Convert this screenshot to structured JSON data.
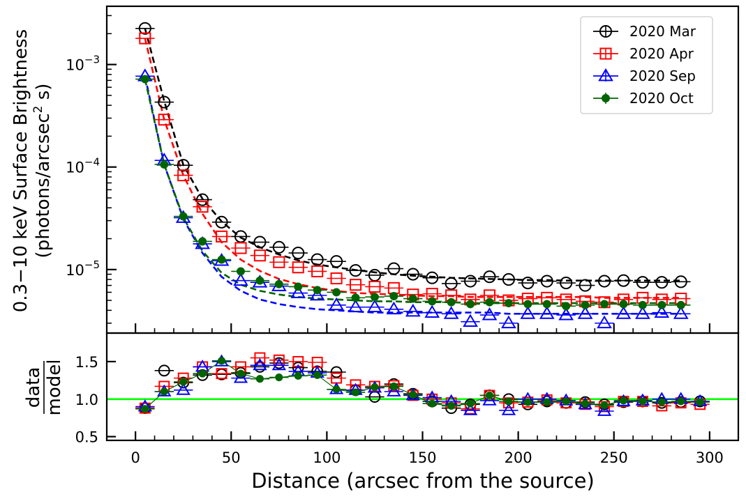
{
  "chart_data": [
    {
      "type": "scatter",
      "panel": "top",
      "y_scale": "log",
      "xlim": [
        -15,
        315
      ],
      "ylim": [
        2.4e-06,
        0.0037
      ],
      "ylabel_line1": "0.3−10 keV Surface Brightness",
      "ylabel_line2": "(photons/arcsec",
      "ylabel_sup": "2",
      "ylabel_end": " s)",
      "y_ticks": [
        {
          "value": 1e-05,
          "base": "10",
          "exp": "−5"
        },
        {
          "value": 0.0001,
          "base": "10",
          "exp": "−4"
        },
        {
          "value": 0.001,
          "base": "10",
          "exp": "−3"
        }
      ],
      "grid": false,
      "legend_position": "top-right",
      "series": [
        {
          "name": "2020 Mar",
          "color": "#000000",
          "marker": "circle-open",
          "x": [
            5,
            15,
            25,
            35,
            45,
            55,
            65,
            75,
            85,
            95,
            105,
            115,
            125,
            135,
            145,
            155,
            165,
            175,
            185,
            195,
            205,
            215,
            225,
            235,
            245,
            255,
            265,
            275,
            285
          ],
          "y": [
            0.00225,
            0.00043,
            0.000104,
            4.8e-05,
            2.9e-05,
            2.1e-05,
            1.85e-05,
            1.65e-05,
            1.45e-05,
            1.25e-05,
            1.2e-05,
            9.8e-06,
            8.8e-06,
            1.02e-05,
            9e-06,
            8.3e-06,
            7.3e-06,
            7.7e-06,
            8.5e-06,
            8e-06,
            7.4e-06,
            7.7e-06,
            7.4e-06,
            7e-06,
            7.7e-06,
            7.8e-06,
            7.5e-06,
            7.5e-06,
            7.6e-06
          ],
          "model": [
            0.00225,
            0.00044,
            0.000105,
            4.9e-05,
            2.95e-05,
            2.05e-05,
            1.65e-05,
            1.4e-05,
            1.23e-05,
            1.12e-05,
            1.05e-05,
            9.9e-06,
            9.4e-06,
            9e-06,
            8.7e-06,
            8.5e-06,
            8.3e-06,
            8.2e-06,
            8.1e-06,
            8e-06,
            7.9e-06,
            7.9e-06,
            7.8e-06,
            7.8e-06,
            7.8e-06,
            7.8e-06,
            7.8e-06,
            7.8e-06,
            7.8e-06
          ]
        },
        {
          "name": "2020 Apr",
          "color": "#ff0000",
          "marker": "square-open",
          "x": [
            5,
            15,
            25,
            35,
            45,
            55,
            65,
            75,
            85,
            95,
            105,
            115,
            125,
            135,
            145,
            155,
            165,
            175,
            185,
            195,
            205,
            215,
            225,
            235,
            245,
            255,
            265,
            275,
            285
          ],
          "y": [
            0.0018,
            0.00029,
            8.3e-05,
            4.1e-05,
            2.1e-05,
            1.62e-05,
            1.37e-05,
            1.18e-05,
            1.05e-05,
            9.6e-06,
            8.2e-06,
            7.1e-06,
            6.8e-06,
            6.6e-06,
            5.7e-06,
            5.8e-06,
            5.6e-06,
            5.1e-06,
            5.6e-06,
            5e-06,
            5.2e-06,
            5.3e-06,
            5.1e-06,
            4.9e-06,
            4.8e-06,
            5.1e-06,
            5.3e-06,
            5.1e-06,
            5.2e-06
          ],
          "model": [
            0.0018,
            0.00029,
            8.3e-05,
            3.5e-05,
            1.85e-05,
            1.25e-05,
            9.7e-06,
            8.1e-06,
            7.2e-06,
            6.6e-06,
            6.2e-06,
            5.9e-06,
            5.8e-06,
            5.7e-06,
            5.6e-06,
            5.5e-06,
            5.5e-06,
            5.4e-06,
            5.4e-06,
            5.4e-06,
            5.4e-06,
            5.4e-06,
            5.4e-06,
            5.4e-06,
            5.3e-06,
            5.3e-06,
            5.3e-06,
            5.3e-06,
            5.3e-06
          ]
        },
        {
          "name": "2020 Sep",
          "color": "#0000ff",
          "marker": "triangle-open",
          "x": [
            5,
            15,
            25,
            35,
            45,
            55,
            65,
            75,
            85,
            95,
            105,
            115,
            125,
            135,
            145,
            155,
            165,
            175,
            185,
            195,
            205,
            215,
            225,
            235,
            245,
            255,
            265,
            275,
            285
          ],
          "y": [
            0.00077,
            0.000116,
            3.2e-05,
            1.78e-05,
            1.22e-05,
            7.8e-06,
            7.5e-06,
            6.9e-06,
            5.9e-06,
            5.6e-06,
            4.5e-06,
            4.3e-06,
            4.3e-06,
            4.1e-06,
            3.9e-06,
            3.8e-06,
            3.7e-06,
            3.1e-06,
            3.6e-06,
            3e-06,
            3.7e-06,
            3.7e-06,
            3.6e-06,
            3.7e-06,
            3e-06,
            3.7e-06,
            3.7e-06,
            3.8e-06,
            3.7e-06
          ],
          "model": [
            0.00077,
            0.000106,
            3.1e-05,
            1.45e-05,
            8.5e-06,
            6.2e-06,
            5.1e-06,
            4.6e-06,
            4.3e-06,
            4.1e-06,
            4e-06,
            3.9e-06,
            3.8e-06,
            3.8e-06,
            3.8e-06,
            3.8e-06,
            3.8e-06,
            3.8e-06,
            3.8e-06,
            3.7e-06,
            3.7e-06,
            3.7e-06,
            3.7e-06,
            3.7e-06,
            3.7e-06,
            3.7e-06,
            3.7e-06,
            3.7e-06,
            3.7e-06
          ]
        },
        {
          "name": "2020 Oct",
          "color": "#006400",
          "marker": "circle-filled",
          "x": [
            5,
            15,
            25,
            35,
            45,
            55,
            65,
            75,
            85,
            95,
            105,
            115,
            125,
            135,
            145,
            155,
            165,
            175,
            185,
            195,
            205,
            215,
            225,
            235,
            245,
            255,
            265,
            275,
            285
          ],
          "y": [
            0.00072,
            0.000106,
            3.3e-05,
            1.88e-05,
            1.25e-05,
            9.6e-06,
            7.8e-06,
            7.2e-06,
            6.8e-06,
            6.3e-06,
            6e-06,
            5.3e-06,
            5.4e-06,
            5.5e-06,
            5.2e-06,
            4.9e-06,
            4.8e-06,
            4.6e-06,
            4.8e-06,
            4.7e-06,
            4.6e-06,
            4.6e-06,
            4.4e-06,
            4.5e-06,
            4.6e-06,
            4.6e-06,
            4.5e-06,
            4.5e-06,
            4.5e-06
          ],
          "model": [
            0.00072,
            0.000106,
            3.2e-05,
            1.52e-05,
            9.3e-06,
            7.1e-06,
            6.2e-06,
            5.7e-06,
            5.4e-06,
            5.2e-06,
            5.1e-06,
            5e-06,
            4.9e-06,
            4.9e-06,
            4.8e-06,
            4.8e-06,
            4.8e-06,
            4.7e-06,
            4.7e-06,
            4.7e-06,
            4.7e-06,
            4.7e-06,
            4.7e-06,
            4.7e-06,
            4.7e-06,
            4.7e-06,
            4.7e-06,
            4.7e-06,
            4.7e-06
          ]
        }
      ]
    },
    {
      "type": "scatter",
      "panel": "bottom",
      "xlabel": "Distance (arcsec from the source)",
      "ylabel_num": "data",
      "ylabel_den": "model",
      "xlim": [
        -15,
        315
      ],
      "ylim": [
        0.45,
        1.88
      ],
      "x_ticks": [
        0,
        50,
        100,
        150,
        200,
        250,
        300
      ],
      "y_ticks": [
        0.5,
        1.0,
        1.5
      ],
      "x_tick_labels": [
        "0",
        "50",
        "100",
        "150",
        "200",
        "250",
        "300"
      ],
      "y_tick_labels": [
        "0.5",
        "1.0",
        "1.5"
      ],
      "reference_line": {
        "y": 1.0,
        "color": "#00ff00"
      },
      "series": [
        {
          "name": "2020 Mar",
          "color": "#000000",
          "marker": "circle-open",
          "x": [
            5,
            15,
            25,
            35,
            45,
            55,
            65,
            75,
            85,
            95,
            105,
            115,
            125,
            135,
            145,
            155,
            165,
            175,
            185,
            195,
            205,
            215,
            225,
            235,
            245,
            255,
            265,
            275,
            285,
            295
          ],
          "y": [
            0.88,
            1.38,
            1.22,
            1.32,
            1.33,
            1.35,
            1.43,
            1.48,
            1.42,
            1.37,
            1.36,
            1.12,
            1.03,
            1.2,
            1.07,
            0.97,
            0.88,
            0.93,
            1.05,
            1.0,
            0.93,
            0.97,
            0.95,
            0.96,
            0.93,
            0.96,
            0.97,
            0.95,
            0.96,
            0.97
          ]
        },
        {
          "name": "2020 Apr",
          "color": "#ff0000",
          "marker": "square-open",
          "x": [
            5,
            15,
            25,
            35,
            45,
            55,
            65,
            75,
            85,
            95,
            105,
            115,
            125,
            135,
            145,
            155,
            165,
            175,
            185,
            195,
            205,
            215,
            225,
            235,
            245,
            255,
            265,
            275,
            285,
            295
          ],
          "y": [
            0.88,
            1.17,
            1.28,
            1.43,
            1.34,
            1.43,
            1.55,
            1.52,
            1.5,
            1.49,
            1.28,
            1.19,
            1.17,
            1.18,
            1.05,
            1.0,
            0.95,
            0.87,
            1.05,
            0.95,
            0.96,
            0.99,
            0.95,
            0.93,
            0.9,
            0.97,
            0.97,
            0.91,
            0.95,
            0.93
          ]
        },
        {
          "name": "2020 Sep",
          "color": "#0000ff",
          "marker": "triangle-open",
          "x": [
            5,
            15,
            25,
            35,
            45,
            55,
            65,
            75,
            85,
            95,
            105,
            115,
            125,
            135,
            145,
            155,
            165,
            175,
            185,
            195,
            205,
            215,
            225,
            235,
            245,
            255,
            265,
            275,
            285,
            295
          ],
          "y": [
            0.9,
            1.1,
            1.12,
            1.43,
            1.5,
            1.28,
            1.45,
            1.45,
            1.37,
            1.35,
            1.13,
            1.12,
            1.15,
            1.1,
            1.05,
            1.02,
            0.97,
            0.85,
            0.98,
            0.85,
            1.0,
            1.0,
            0.98,
            0.93,
            0.84,
            0.97,
            0.98,
            1.0,
            1.0,
            0.97
          ]
        },
        {
          "name": "2020 Oct",
          "color": "#006400",
          "marker": "circle-filled",
          "x": [
            5,
            15,
            25,
            35,
            45,
            55,
            65,
            75,
            85,
            95,
            105,
            115,
            125,
            135,
            145,
            155,
            165,
            175,
            185,
            195,
            205,
            215,
            225,
            235,
            245,
            255,
            265,
            275,
            285,
            295
          ],
          "y": [
            0.87,
            1.1,
            1.23,
            1.34,
            1.51,
            1.34,
            1.27,
            1.29,
            1.31,
            1.32,
            1.13,
            1.09,
            1.16,
            1.17,
            1.06,
            0.94,
            0.91,
            0.94,
            1.05,
            0.97,
            0.96,
            0.96,
            0.97,
            0.94,
            0.92,
            0.98,
            0.97,
            0.96,
            0.97,
            0.96
          ]
        }
      ]
    }
  ]
}
